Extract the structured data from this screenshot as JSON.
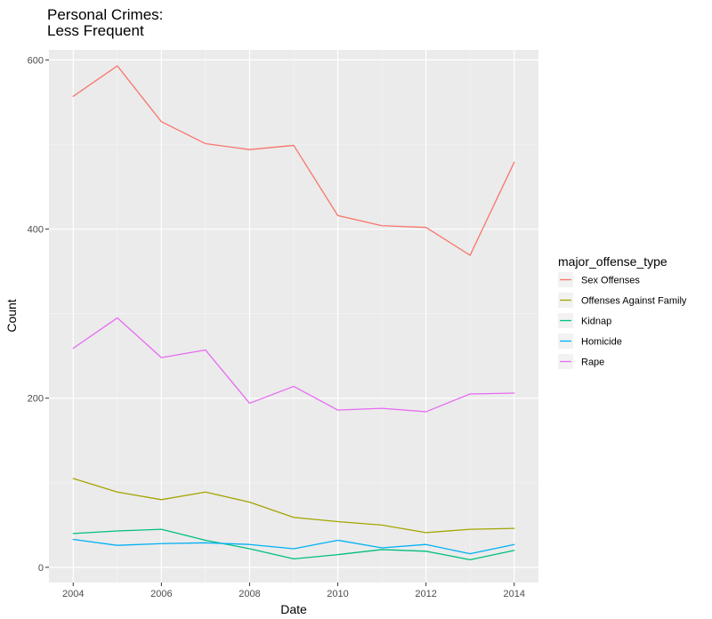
{
  "chart_data": {
    "type": "line",
    "title_lines": [
      "Personal Crimes:",
      "Less Frequent"
    ],
    "xlabel": "Date",
    "ylabel": "Count",
    "x": [
      2004,
      2005,
      2006,
      2007,
      2008,
      2009,
      2010,
      2011,
      2012,
      2013,
      2014
    ],
    "xlim": [
      2003.45,
      2014.55
    ],
    "ylim": [
      -18,
      612
    ],
    "x_ticks": [
      2004,
      2006,
      2008,
      2010,
      2012,
      2014
    ],
    "y_ticks": [
      0,
      200,
      400,
      600
    ],
    "grid": true,
    "panel_background": "#ebebeb",
    "legend": {
      "title": "major_offense_type",
      "position": "right"
    },
    "series": [
      {
        "name": "Sex Offenses",
        "color": "#f8766d",
        "values": [
          557,
          593,
          527,
          501,
          494,
          499,
          416,
          404,
          402,
          369,
          479
        ]
      },
      {
        "name": "Offenses Against Family",
        "color": "#a3a500",
        "values": [
          105,
          89,
          80,
          89,
          77,
          59,
          54,
          50,
          41,
          45,
          46
        ]
      },
      {
        "name": "Kidnap",
        "color": "#00bf7d",
        "values": [
          40,
          43,
          45,
          32,
          22,
          10,
          15,
          21,
          19,
          9,
          20
        ]
      },
      {
        "name": "Homicide",
        "color": "#00b0f6",
        "values": [
          33,
          26,
          28,
          29,
          27,
          22,
          32,
          23,
          27,
          16,
          27
        ]
      },
      {
        "name": "Rape",
        "color": "#e76bf3",
        "values": [
          259,
          295,
          248,
          257,
          194,
          214,
          186,
          188,
          184,
          205,
          206
        ]
      }
    ]
  }
}
